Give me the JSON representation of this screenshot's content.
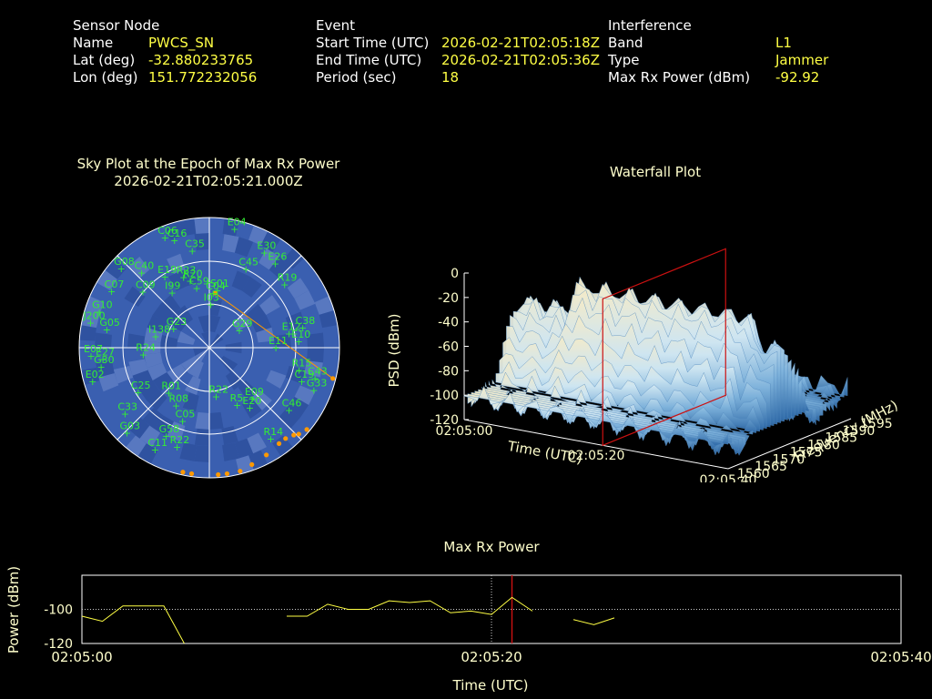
{
  "header": {
    "sensor": {
      "heading": "Sensor Node",
      "rows": [
        {
          "label": "Name",
          "value": "PWCS_SN"
        },
        {
          "label": "Lat (deg)",
          "value": "-32.880233765"
        },
        {
          "label": "Lon (deg)",
          "value": "151.772232056"
        }
      ]
    },
    "event": {
      "heading": "Event",
      "rows": [
        {
          "label": "Start Time (UTC)",
          "value": "2026-02-21T02:05:18Z"
        },
        {
          "label": "End Time (UTC)",
          "value": "2026-02-21T02:05:36Z"
        },
        {
          "label": "Period (sec)",
          "value": "18"
        }
      ]
    },
    "interference": {
      "heading": "Interference",
      "rows": [
        {
          "label": "Band",
          "value": "L1"
        },
        {
          "label": "Type",
          "value": "Jammer"
        },
        {
          "label": "Max Rx Power (dBm)",
          "value": "-92.92"
        }
      ]
    }
  },
  "colors": {
    "sky_bg": "#3a5fb0",
    "satellite": "#33ee33",
    "track": "#ff9900",
    "value_text": "#ffff44",
    "marker": "#cc1111"
  },
  "chart_data": [
    {
      "type": "scatter",
      "title": "Sky Plot at the Epoch of Max Rx Power",
      "subtitle": "2026-02-21T02:05:21.000Z",
      "satellites": [
        {
          "id": "C06",
          "az": -22,
          "el": 8
        },
        {
          "id": "C16",
          "az": -18,
          "el": 12
        },
        {
          "id": "E04",
          "az": 12,
          "el": 6
        },
        {
          "id": "C35",
          "az": -10,
          "el": 22
        },
        {
          "id": "E30",
          "az": 30,
          "el": 14
        },
        {
          "id": "E26",
          "az": 38,
          "el": 16
        },
        {
          "id": "C45",
          "az": 25,
          "el": 30
        },
        {
          "id": "G08",
          "az": -48,
          "el": 8
        },
        {
          "id": "C40",
          "az": -42,
          "el": 20
        },
        {
          "id": "E19",
          "az": -32,
          "el": 32
        },
        {
          "id": "R23",
          "az": -20,
          "el": 38
        },
        {
          "id": "R20",
          "az": -16,
          "el": 42
        },
        {
          "id": "R19",
          "az": 50,
          "el": 22
        },
        {
          "id": "C07",
          "az": -60,
          "el": 12
        },
        {
          "id": "C09",
          "az": -50,
          "el": 30
        },
        {
          "id": "I99",
          "az": -34,
          "el": 44
        },
        {
          "id": "C59",
          "az": -12,
          "el": 48
        },
        {
          "id": "S01",
          "az": 8,
          "el": 50
        },
        {
          "id": "C04",
          "az": 4,
          "el": 52
        },
        {
          "id": "I03",
          "az": 2,
          "el": 60
        },
        {
          "id": "G10",
          "az": -72,
          "el": 10
        },
        {
          "id": "J200",
          "az": -78,
          "el": 6
        },
        {
          "id": "C38",
          "az": 78,
          "el": 24
        },
        {
          "id": "E10",
          "az": 86,
          "el": 28
        },
        {
          "id": "E12",
          "az": 80,
          "el": 34
        },
        {
          "id": "G05",
          "az": -80,
          "el": 18
        },
        {
          "id": "E07",
          "az": -94,
          "el": 8
        },
        {
          "id": "E27",
          "az": -96,
          "el": 16
        },
        {
          "id": "G30",
          "az": -100,
          "el": 14
        },
        {
          "id": "G23",
          "az": -62,
          "el": 62
        },
        {
          "id": "I138",
          "az": -78,
          "el": 52
        },
        {
          "id": "R24",
          "az": -96,
          "el": 44
        },
        {
          "id": "G29",
          "az": 60,
          "el": 66
        },
        {
          "id": "E11",
          "az": 90,
          "el": 44
        },
        {
          "id": "R15",
          "az": 104,
          "el": 26
        },
        {
          "id": "C19",
          "az": 110,
          "el": 22
        },
        {
          "id": "C43",
          "az": 106,
          "el": 14
        },
        {
          "id": "G33",
          "az": 112,
          "el": 12
        },
        {
          "id": "E02",
          "az": -106,
          "el": 6
        },
        {
          "id": "C25",
          "az": -122,
          "el": 32
        },
        {
          "id": "R01",
          "az": -138,
          "el": 48
        },
        {
          "id": "C33",
          "az": -128,
          "el": 16
        },
        {
          "id": "R08",
          "az": -150,
          "el": 44
        },
        {
          "id": "C05",
          "az": -160,
          "el": 36
        },
        {
          "id": "G03",
          "az": -136,
          "el": 8
        },
        {
          "id": "G58",
          "az": -154,
          "el": 22
        },
        {
          "id": "R22",
          "az": 172,
          "el": 56
        },
        {
          "id": "E20",
          "az": 146,
          "el": 40
        },
        {
          "id": "E09",
          "az": 140,
          "el": 44
        },
        {
          "id": "R5",
          "az": 154,
          "el": 46
        },
        {
          "id": "C46",
          "az": 128,
          "el": 20
        },
        {
          "id": "C11",
          "az": -152,
          "el": 10
        },
        {
          "id": "R22b",
          "label": "R22",
          "az": -162,
          "el": 18
        },
        {
          "id": "R14",
          "az": 146,
          "el": 14
        }
      ],
      "track": [
        {
          "az": 6,
          "el": 52
        },
        {
          "az": 104,
          "el": 2
        },
        {
          "az": 130,
          "el": 2
        },
        {
          "az": 134,
          "el": 4
        },
        {
          "az": 136,
          "el": 6
        },
        {
          "az": 140,
          "el": 8
        },
        {
          "az": 144,
          "el": 8
        },
        {
          "az": 152,
          "el": 6
        },
        {
          "az": 160,
          "el": 4
        },
        {
          "az": 166,
          "el": 2
        },
        {
          "az": 172,
          "el": 2
        },
        {
          "az": 176,
          "el": 2
        },
        {
          "az": -172,
          "el": 2
        },
        {
          "az": -168,
          "el": 2
        }
      ]
    },
    {
      "type": "surface",
      "title": "Waterfall Plot",
      "xlabel": "Time (UTC)",
      "ylabel": "Frequency (MHz)",
      "zlabel": "PSD (dBm)",
      "x_ticks": [
        "02:05:00",
        "02:05:20",
        "02:05:40"
      ],
      "y_ticks": [
        1560,
        1565,
        1570,
        1575,
        1580,
        1585,
        1590,
        1595
      ],
      "z_ticks": [
        0,
        -20,
        -40,
        -60,
        -80,
        -100,
        -120
      ],
      "xlim_sec": [
        0,
        40
      ],
      "ylim": [
        1560,
        1595
      ],
      "zlim": [
        -120,
        0
      ],
      "marker_time_sec": 21
    },
    {
      "type": "line",
      "title": "Max Rx Power",
      "xlabel": "Time (UTC)",
      "ylabel": "Power (dBm)",
      "x_ticks": [
        "02:05:00",
        "02:05:20",
        "02:05:40"
      ],
      "y_ticks": [
        -100,
        -120
      ],
      "xlim_sec": [
        0,
        40
      ],
      "ylim": [
        -120,
        -80
      ],
      "reference_level": -100,
      "cursor_sec": 20,
      "marker_sec": 21,
      "segments": [
        [
          [
            0,
            -104
          ],
          [
            1,
            -107
          ],
          [
            2,
            -98
          ],
          [
            4,
            -98
          ],
          [
            5,
            -120
          ]
        ],
        [
          [
            10,
            -104
          ],
          [
            11,
            -104
          ],
          [
            12,
            -97
          ],
          [
            13,
            -100
          ],
          [
            14,
            -100
          ],
          [
            15,
            -95
          ],
          [
            16,
            -96
          ],
          [
            17,
            -95
          ],
          [
            18,
            -102
          ],
          [
            19,
            -101
          ],
          [
            20,
            -103
          ],
          [
            21,
            -93
          ],
          [
            22,
            -101
          ]
        ],
        [
          [
            24,
            -106
          ],
          [
            25,
            -109
          ],
          [
            26,
            -105
          ]
        ]
      ]
    }
  ]
}
